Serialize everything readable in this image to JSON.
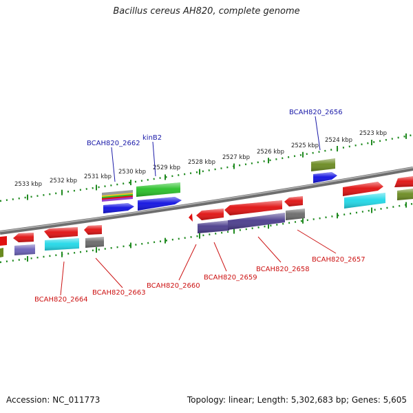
{
  "title": "Bacillus cereus AH820, complete genome",
  "footer": {
    "accession": "Accession: NC_011773",
    "summary": "Topology: linear; Length: 5,302,683 bp; Genes: 5,605"
  },
  "colors": {
    "ruler": "#1f8a1f",
    "backbone": "#8c8c8c",
    "label_top": "#1a1aa8",
    "label_bottom": "#cc1111",
    "red": "#e01010",
    "blue": "#1010e0",
    "green": "#28c028",
    "olive": "#6a8a20",
    "purple": "#6a60b8",
    "navy": "#4a3c8c",
    "cyan": "#20d8e8",
    "gray": "#6a6a6a"
  },
  "ruler_ticks": [
    "2533 kbp",
    "2532 kbp",
    "2531 kbp",
    "2530 kbp",
    "2529 kbp",
    "2528 kbp",
    "2527 kbp",
    "2526 kbp",
    "2525 kbp",
    "2524 kbp",
    "2523 kbp"
  ],
  "top_labels": [
    "BCAH820_2662",
    "kinB2",
    "BCAH820_2656"
  ],
  "bottom_labels": [
    "BCAH820_2664",
    "BCAH820_2663",
    "BCAH820_2660",
    "BCAH820_2659",
    "BCAH820_2658",
    "BCAH820_2657"
  ]
}
